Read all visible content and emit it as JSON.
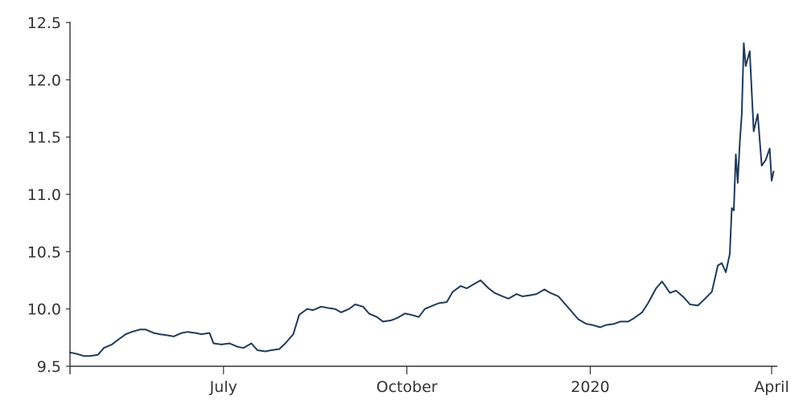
{
  "chart_data": {
    "type": "line",
    "title": "",
    "xlabel": "",
    "ylabel": "",
    "grid": false,
    "line_color": "#1f3b5a",
    "xlim": [
      "2019-04-15",
      "2020-04-03"
    ],
    "ylim": [
      9.5,
      12.5
    ],
    "y_ticks": [
      {
        "value": 9.5,
        "label": "9.5"
      },
      {
        "value": 10.0,
        "label": "10.0"
      },
      {
        "value": 10.5,
        "label": "10.5"
      },
      {
        "value": 11.0,
        "label": "11.0"
      },
      {
        "value": 11.5,
        "label": "11.5"
      },
      {
        "value": 12.0,
        "label": "12.0"
      },
      {
        "value": 12.5,
        "label": "12.5"
      }
    ],
    "x_ticks": [
      {
        "date": "2019-07-01",
        "label": "July"
      },
      {
        "date": "2019-10-01",
        "label": "October"
      },
      {
        "date": "2020-01-01",
        "label": "2020"
      },
      {
        "date": "2020-04-01",
        "label": "April"
      }
    ],
    "series": [
      {
        "points": [
          [
            "2019-04-15",
            9.62
          ],
          [
            "2019-04-18",
            9.61
          ],
          [
            "2019-04-22",
            9.59
          ],
          [
            "2019-04-25",
            9.59
          ],
          [
            "2019-04-29",
            9.6
          ],
          [
            "2019-05-02",
            9.66
          ],
          [
            "2019-05-06",
            9.69
          ],
          [
            "2019-05-09",
            9.73
          ],
          [
            "2019-05-13",
            9.78
          ],
          [
            "2019-05-16",
            9.8
          ],
          [
            "2019-05-20",
            9.82
          ],
          [
            "2019-05-23",
            9.82
          ],
          [
            "2019-05-27",
            9.79
          ],
          [
            "2019-05-30",
            9.78
          ],
          [
            "2019-06-03",
            9.77
          ],
          [
            "2019-06-06",
            9.76
          ],
          [
            "2019-06-10",
            9.79
          ],
          [
            "2019-06-13",
            9.8
          ],
          [
            "2019-06-17",
            9.79
          ],
          [
            "2019-06-20",
            9.78
          ],
          [
            "2019-06-24",
            9.79
          ],
          [
            "2019-06-26",
            9.7
          ],
          [
            "2019-06-30",
            9.69
          ],
          [
            "2019-07-04",
            9.7
          ],
          [
            "2019-07-08",
            9.67
          ],
          [
            "2019-07-11",
            9.66
          ],
          [
            "2019-07-15",
            9.7
          ],
          [
            "2019-07-18",
            9.64
          ],
          [
            "2019-07-22",
            9.63
          ],
          [
            "2019-07-25",
            9.64
          ],
          [
            "2019-07-29",
            9.65
          ],
          [
            "2019-08-01",
            9.7
          ],
          [
            "2019-08-05",
            9.78
          ],
          [
            "2019-08-08",
            9.95
          ],
          [
            "2019-08-12",
            10.0
          ],
          [
            "2019-08-15",
            9.99
          ],
          [
            "2019-08-19",
            10.02
          ],
          [
            "2019-08-22",
            10.01
          ],
          [
            "2019-08-26",
            10.0
          ],
          [
            "2019-08-29",
            9.97
          ],
          [
            "2019-09-02",
            10.0
          ],
          [
            "2019-09-05",
            10.04
          ],
          [
            "2019-09-09",
            10.02
          ],
          [
            "2019-09-12",
            9.96
          ],
          [
            "2019-09-16",
            9.93
          ],
          [
            "2019-09-19",
            9.89
          ],
          [
            "2019-09-23",
            9.9
          ],
          [
            "2019-09-26",
            9.92
          ],
          [
            "2019-09-30",
            9.96
          ],
          [
            "2019-10-03",
            9.95
          ],
          [
            "2019-10-07",
            9.93
          ],
          [
            "2019-10-10",
            10.0
          ],
          [
            "2019-10-14",
            10.03
          ],
          [
            "2019-10-17",
            10.05
          ],
          [
            "2019-10-21",
            10.06
          ],
          [
            "2019-10-24",
            10.15
          ],
          [
            "2019-10-28",
            10.2
          ],
          [
            "2019-10-31",
            10.18
          ],
          [
            "2019-11-04",
            10.22
          ],
          [
            "2019-11-07",
            10.25
          ],
          [
            "2019-11-11",
            10.18
          ],
          [
            "2019-11-14",
            10.14
          ],
          [
            "2019-11-18",
            10.11
          ],
          [
            "2019-11-21",
            10.09
          ],
          [
            "2019-11-25",
            10.13
          ],
          [
            "2019-11-28",
            10.11
          ],
          [
            "2019-12-02",
            10.12
          ],
          [
            "2019-12-05",
            10.13
          ],
          [
            "2019-12-09",
            10.17
          ],
          [
            "2019-12-12",
            10.14
          ],
          [
            "2019-12-16",
            10.11
          ],
          [
            "2019-12-19",
            10.05
          ],
          [
            "2019-12-23",
            9.97
          ],
          [
            "2019-12-26",
            9.91
          ],
          [
            "2019-12-30",
            9.87
          ],
          [
            "2020-01-02",
            9.86
          ],
          [
            "2020-01-06",
            9.84
          ],
          [
            "2020-01-09",
            9.86
          ],
          [
            "2020-01-13",
            9.87
          ],
          [
            "2020-01-16",
            9.89
          ],
          [
            "2020-01-20",
            9.89
          ],
          [
            "2020-01-23",
            9.92
          ],
          [
            "2020-01-27",
            9.97
          ],
          [
            "2020-01-30",
            10.05
          ],
          [
            "2020-02-03",
            10.18
          ],
          [
            "2020-02-06",
            10.24
          ],
          [
            "2020-02-10",
            10.14
          ],
          [
            "2020-02-13",
            10.16
          ],
          [
            "2020-02-17",
            10.1
          ],
          [
            "2020-02-20",
            10.04
          ],
          [
            "2020-02-24",
            10.03
          ],
          [
            "2020-02-27",
            10.08
          ],
          [
            "2020-03-02",
            10.15
          ],
          [
            "2020-03-05",
            10.38
          ],
          [
            "2020-03-07",
            10.4
          ],
          [
            "2020-03-09",
            10.32
          ],
          [
            "2020-03-11",
            10.48
          ],
          [
            "2020-03-12",
            10.88
          ],
          [
            "2020-03-13",
            10.86
          ],
          [
            "2020-03-14",
            11.35
          ],
          [
            "2020-03-15",
            11.1
          ],
          [
            "2020-03-16",
            11.45
          ],
          [
            "2020-03-17",
            11.7
          ],
          [
            "2020-03-18",
            12.32
          ],
          [
            "2020-03-19",
            12.12
          ],
          [
            "2020-03-21",
            12.25
          ],
          [
            "2020-03-23",
            11.55
          ],
          [
            "2020-03-25",
            11.7
          ],
          [
            "2020-03-27",
            11.25
          ],
          [
            "2020-03-29",
            11.3
          ],
          [
            "2020-03-31",
            11.4
          ],
          [
            "2020-04-01",
            11.12
          ],
          [
            "2020-04-02",
            11.2
          ]
        ]
      }
    ]
  }
}
